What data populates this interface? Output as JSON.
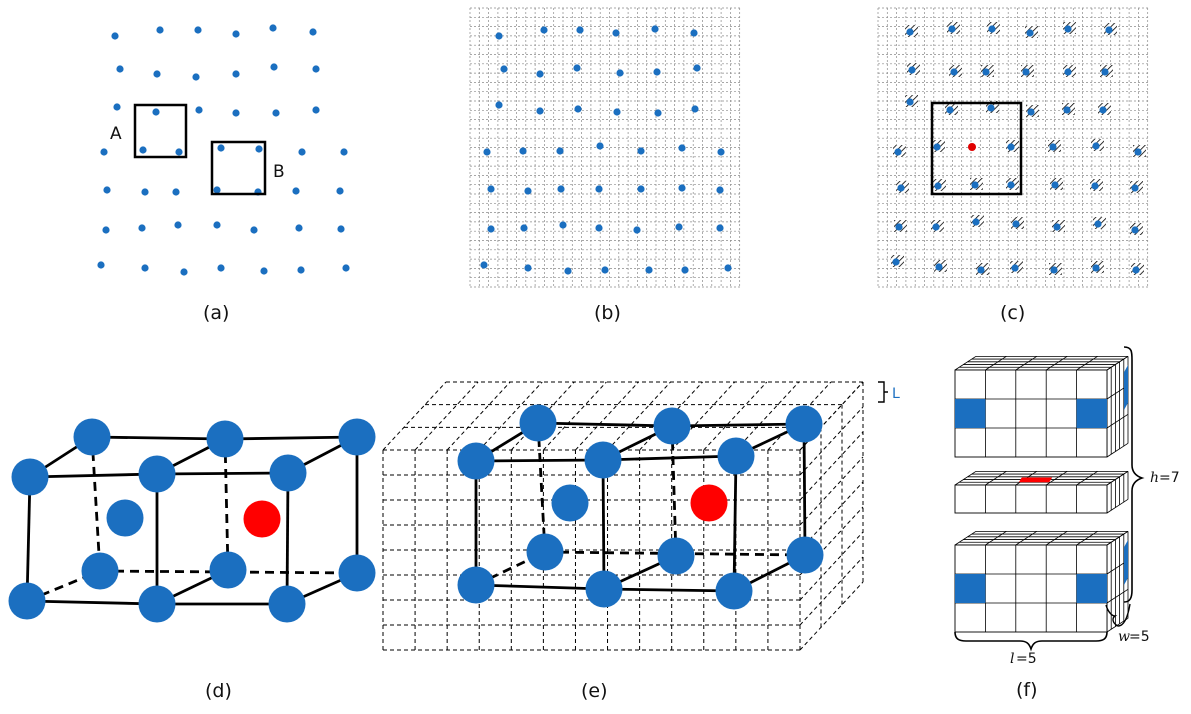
{
  "panels": {
    "a": {
      "caption": "(a)",
      "box_a_label": "A",
      "box_b_label": "B"
    },
    "b": {
      "caption": "(b)"
    },
    "c": {
      "caption": "(c)"
    },
    "d": {
      "caption": "(d)"
    },
    "e": {
      "caption": "(e)",
      "cell_size_label": "L"
    },
    "f": {
      "caption": "(f)",
      "height_label": "h",
      "height_value": "=7",
      "width_label": "w",
      "width_value": "=5",
      "length_label": "l",
      "length_value": "=5"
    }
  },
  "colors": {
    "atom": "#1b6fc0",
    "vacancy": "#ff0000",
    "grid": "#8a8a8a",
    "line": "#000000"
  }
}
